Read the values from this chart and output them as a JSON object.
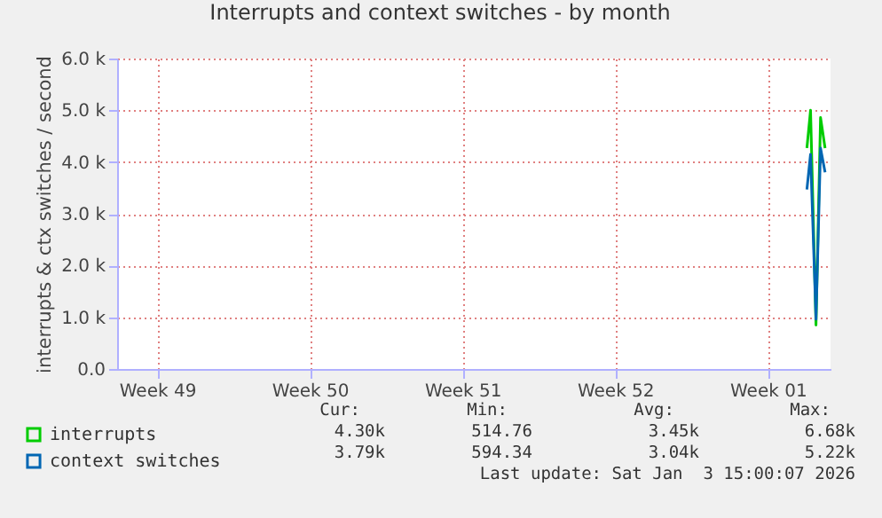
{
  "chart_data": {
    "type": "line",
    "title": "Interrupts and context switches - by month",
    "ylabel": "interrupts & ctx switches / second",
    "x": [
      "2026-01-02T19:00",
      "2026-01-02T23:00",
      "2026-01-03T05:00",
      "2026-01-03T10:00",
      "2026-01-03T15:00"
    ],
    "series": [
      {
        "name": "interrupts",
        "color": "#00cc00",
        "values": [
          4.27,
          5.0,
          0.85,
          4.86,
          4.27
        ]
      },
      {
        "name": "context switches",
        "color": "#0066b3",
        "values": [
          3.47,
          4.15,
          0.96,
          4.27,
          3.8
        ]
      }
    ],
    "xlim": [
      "2025-12-02T04:00",
      "2026-01-03T21:00"
    ],
    "xticks": [
      {
        "value": "2025-12-04",
        "label": "Week 49"
      },
      {
        "value": "2025-12-11",
        "label": "Week 50"
      },
      {
        "value": "2025-12-18",
        "label": "Week 51"
      },
      {
        "value": "2025-12-25",
        "label": "Week 52"
      },
      {
        "value": "2026-01-01",
        "label": "Week 01"
      }
    ],
    "ylim": [
      0,
      6
    ],
    "yticks": [
      {
        "value": 0,
        "label": "0.0"
      },
      {
        "value": 1,
        "label": "1.0 k"
      },
      {
        "value": 2,
        "label": "2.0 k"
      },
      {
        "value": 3,
        "label": "3.0 k"
      },
      {
        "value": 4,
        "label": "4.0 k"
      },
      {
        "value": 5,
        "label": "5.0 k"
      },
      {
        "value": 6,
        "label": "6.0 k"
      }
    ],
    "grid": true,
    "legend": "bottom left",
    "annotations": [
      "Cur:",
      "Min:",
      "Avg:",
      "Max:",
      "4.30k",
      "514.76",
      "3.45k",
      "6.68k",
      "3.79k",
      "594.34",
      "3.04k",
      "5.22k",
      "Last update: Sat Jan  3 15:00:07 2026"
    ]
  }
}
